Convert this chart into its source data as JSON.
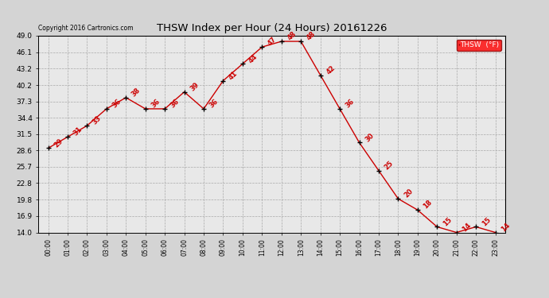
{
  "title": "THSW Index per Hour (24 Hours) 20161226",
  "copyright": "Copyright 2016 Cartronics.com",
  "legend_label": "THSW  (°F)",
  "hours": [
    0,
    1,
    2,
    3,
    4,
    5,
    6,
    7,
    8,
    9,
    10,
    11,
    12,
    13,
    14,
    15,
    16,
    17,
    18,
    19,
    20,
    21,
    22,
    23
  ],
  "values": [
    29,
    31,
    33,
    36,
    38,
    36,
    36,
    39,
    36,
    41,
    44,
    47,
    48,
    48,
    42,
    36,
    30,
    25,
    20,
    18,
    15,
    14,
    15,
    14
  ],
  "xlabels": [
    "00:00",
    "01:00",
    "02:00",
    "03:00",
    "04:00",
    "05:00",
    "06:00",
    "07:00",
    "08:00",
    "09:00",
    "10:00",
    "11:00",
    "12:00",
    "13:00",
    "14:00",
    "15:00",
    "16:00",
    "17:00",
    "18:00",
    "19:00",
    "20:00",
    "21:00",
    "22:00",
    "23:00"
  ],
  "yticks": [
    14.0,
    16.9,
    19.8,
    22.8,
    25.7,
    28.6,
    31.5,
    34.4,
    37.3,
    40.2,
    43.2,
    46.1,
    49.0
  ],
  "ylim": [
    14.0,
    49.0
  ],
  "bg_color": "#d4d4d4",
  "plot_bg_color": "#e8e8e8",
  "line_color": "#cc0000",
  "marker_color": "#000000",
  "grid_color": "#aaaaaa",
  "title_color": "#000000",
  "label_color": "#cc0000",
  "copyright_color": "#000000",
  "figwidth": 6.9,
  "figheight": 3.75,
  "dpi": 100
}
